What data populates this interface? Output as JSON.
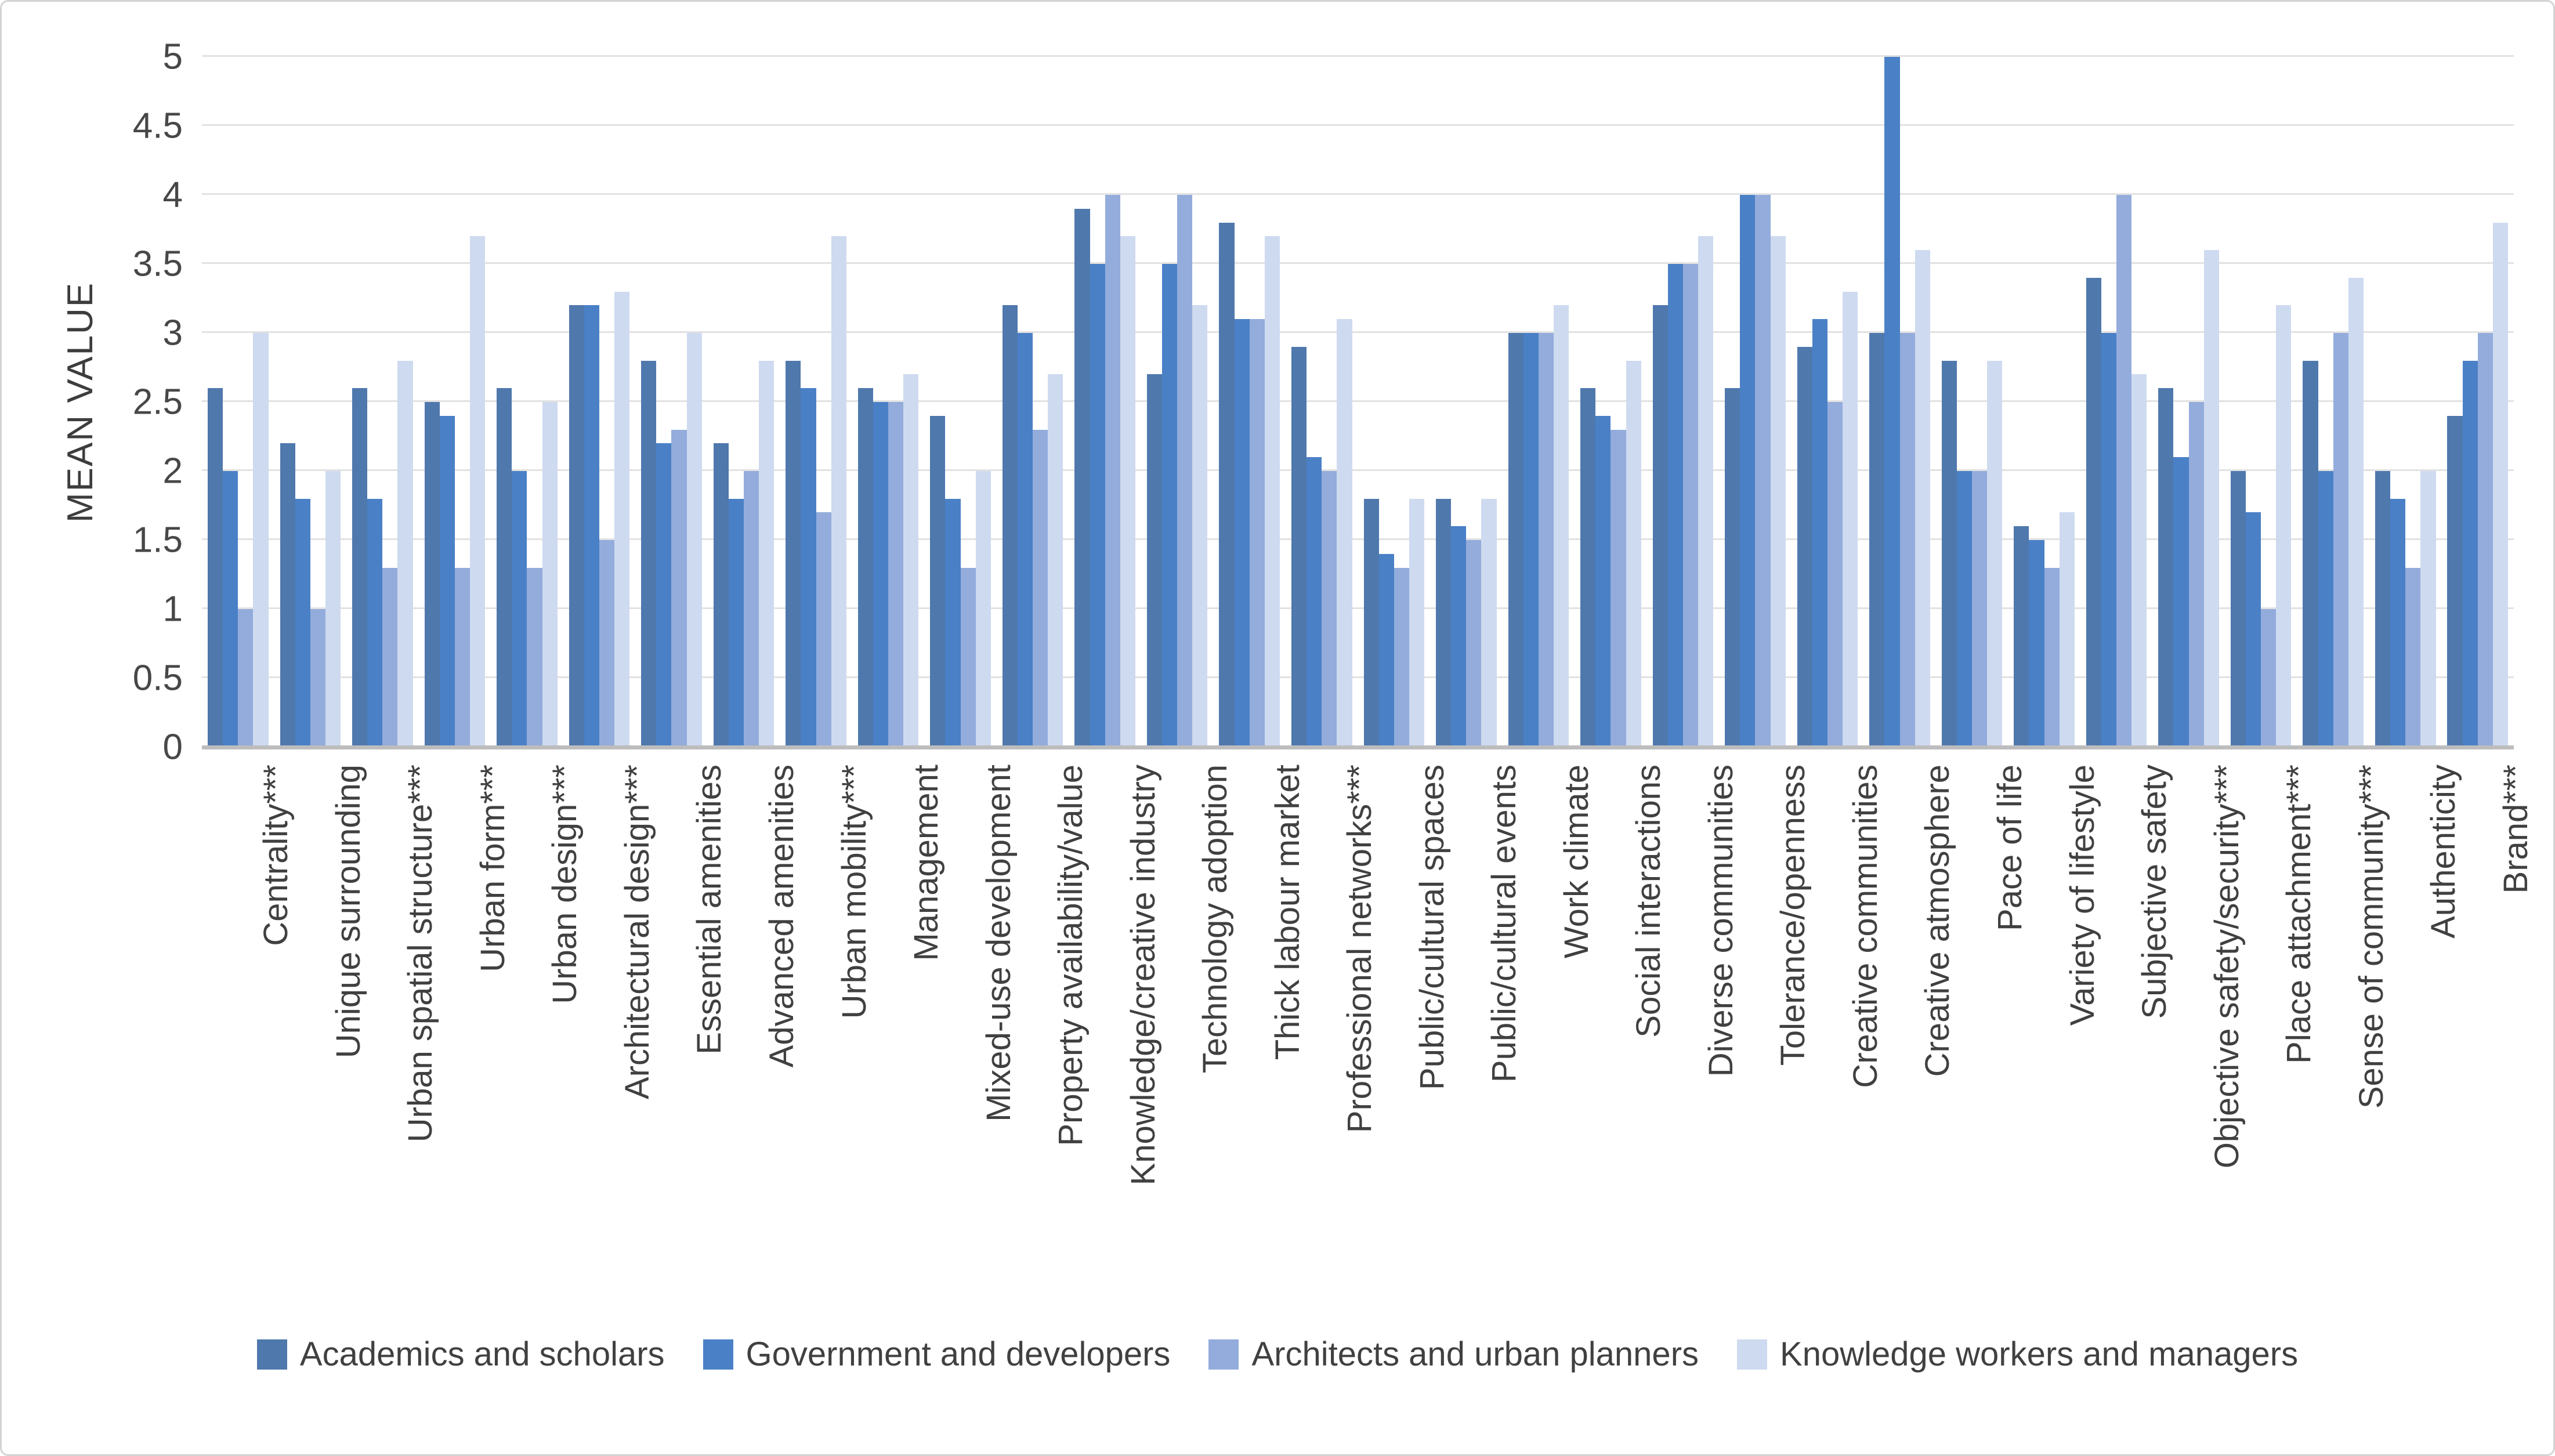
{
  "chart_data": {
    "type": "bar",
    "title": "",
    "xlabel": "",
    "ylabel": "MEAN VALUE",
    "ylim": [
      0,
      5
    ],
    "ytick_step": 0.5,
    "yticks": [
      "0",
      "0.5",
      "1",
      "1.5",
      "2",
      "2.5",
      "3",
      "3.5",
      "4",
      "4.5",
      "5"
    ],
    "grid": true,
    "legend_position": "bottom",
    "gridline_color": "#e2e2e2",
    "axis_line_color": "#bdbdbd",
    "text_color": "#404040",
    "categories": [
      "Centrality***",
      "Unique surrounding",
      "Urban spatial structure***",
      "Urban form***",
      "Urban design***",
      "Architectural design***",
      "Essential amenities",
      "Advanced amenities",
      "Urban mobility***",
      "Management",
      "Mixed-use development",
      "Property availability/value",
      "Knowledge/creative industry",
      "Technology adoption",
      "Thick labour market",
      "Professional networks***",
      "Public/cultural spaces",
      "Public/cultural events",
      "Work climate",
      "Social interactions",
      "Diverse communities",
      "Tolerance/openness",
      "Creative communities",
      "Creative atmosphere",
      "Pace of life",
      "Variety of lifestyle",
      "Subjective safety",
      "Objective safety/security***",
      "Place attachment***",
      "Sense of community***",
      "Authenticity",
      "Brand***"
    ],
    "series": [
      {
        "name": "Academics and scholars",
        "color": "#4f78ad",
        "values": [
          2.6,
          2.2,
          2.6,
          2.5,
          2.6,
          3.2,
          2.8,
          2.2,
          2.8,
          2.6,
          2.4,
          3.2,
          3.9,
          2.7,
          3.8,
          2.9,
          1.8,
          1.8,
          3.0,
          2.6,
          3.2,
          2.6,
          2.9,
          3.0,
          2.8,
          1.6,
          3.4,
          2.6,
          2.0,
          2.8,
          2.0,
          2.4
        ]
      },
      {
        "name": "Government and developers",
        "color": "#4a80c6",
        "values": [
          2.0,
          1.8,
          1.8,
          2.4,
          2.0,
          3.2,
          2.2,
          1.8,
          2.6,
          2.5,
          1.8,
          3.0,
          3.5,
          3.5,
          3.1,
          2.1,
          1.4,
          1.6,
          3.0,
          2.4,
          3.5,
          4.0,
          3.1,
          5.0,
          2.0,
          1.5,
          3.0,
          2.1,
          1.7,
          2.0,
          1.8,
          2.8
        ]
      },
      {
        "name": "Architects and urban planners",
        "color": "#93acdc",
        "values": [
          1.0,
          1.0,
          1.3,
          1.3,
          1.3,
          1.5,
          2.3,
          2.0,
          1.7,
          2.5,
          1.3,
          2.3,
          4.0,
          4.0,
          3.1,
          2.0,
          1.3,
          1.5,
          3.0,
          2.3,
          3.5,
          4.0,
          2.5,
          3.0,
          2.0,
          1.3,
          4.0,
          2.5,
          1.0,
          3.0,
          1.3,
          3.0
        ]
      },
      {
        "name": "Knowledge workers and managers",
        "color": "#cedaef",
        "values": [
          3.0,
          2.0,
          2.8,
          3.7,
          2.5,
          3.3,
          3.0,
          2.8,
          3.7,
          2.7,
          2.0,
          2.7,
          3.7,
          3.2,
          3.7,
          3.1,
          1.8,
          1.8,
          3.2,
          2.8,
          3.7,
          3.7,
          3.3,
          3.6,
          2.8,
          1.7,
          2.7,
          3.6,
          3.2,
          3.4,
          2.0,
          3.8
        ]
      }
    ]
  }
}
